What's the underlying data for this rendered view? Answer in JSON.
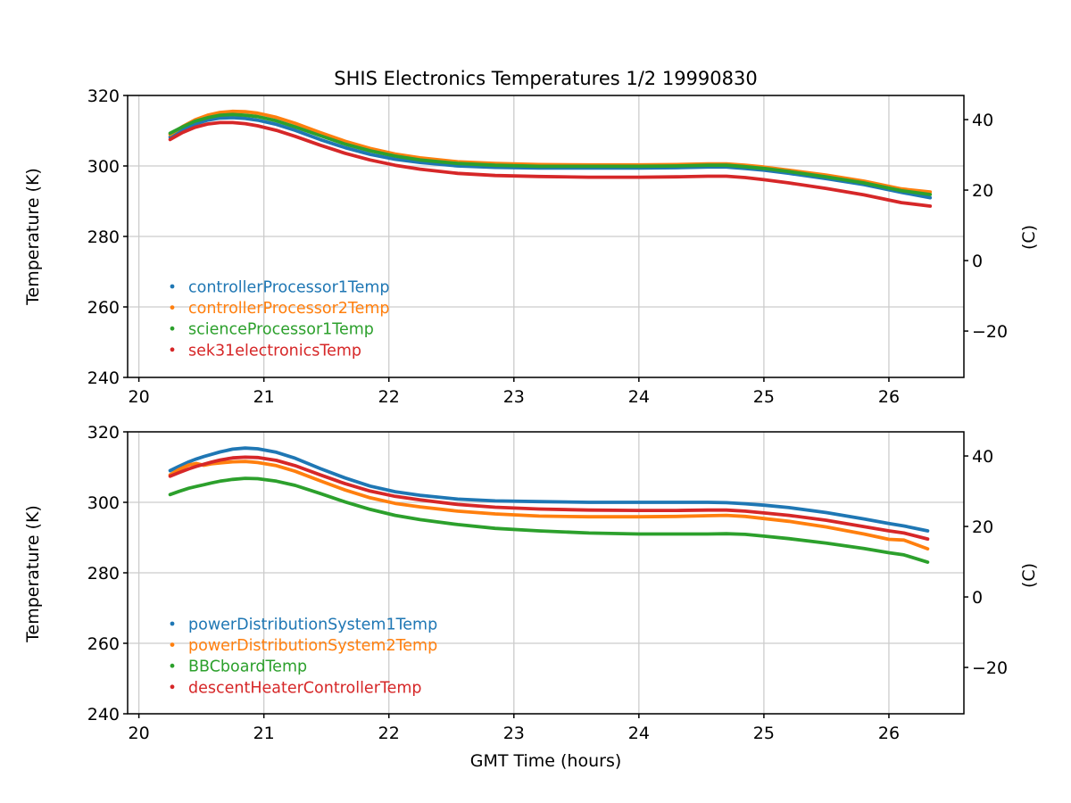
{
  "figure": {
    "title": "SHIS Electronics Temperatures 1/2 19990830",
    "background": "#ffffff",
    "text_color": "#000000",
    "grid_color": "#cccccc",
    "spine_color": "#000000"
  },
  "chart_data": [
    {
      "type": "line",
      "position": "top",
      "xlabel": "",
      "ylabel_left": "Temperature (K)",
      "ylabel_right": "(C)",
      "xlim": [
        19.91,
        26.6
      ],
      "ylim_K": [
        240,
        320
      ],
      "xticks": [
        20,
        21,
        22,
        23,
        24,
        25,
        26
      ],
      "yticks_K": [
        240,
        260,
        280,
        300,
        320
      ],
      "yticks_C": [
        -20,
        0,
        20,
        40
      ],
      "grid": true,
      "legend_position": "lower left inside, no frame, text colored per series",
      "x": [
        20.25,
        20.35,
        20.45,
        20.55,
        20.65,
        20.75,
        20.85,
        20.95,
        21.1,
        21.25,
        21.45,
        21.65,
        21.85,
        22.05,
        22.25,
        22.55,
        22.85,
        23.2,
        23.6,
        24.0,
        24.3,
        24.55,
        24.7,
        24.85,
        25.0,
        25.2,
        25.5,
        25.8,
        26.1,
        26.33
      ],
      "series": [
        {
          "name": "controllerProcessor1Temp",
          "color": "#1f77b4",
          "y": [
            308.2,
            310.3,
            311.9,
            313.0,
            313.6,
            313.7,
            313.5,
            313.0,
            311.8,
            310.1,
            307.5,
            305.2,
            303.3,
            301.9,
            301.0,
            300.0,
            299.6,
            299.4,
            299.4,
            299.4,
            299.5,
            299.7,
            299.7,
            299.3,
            298.8,
            297.9,
            296.4,
            294.7,
            292.5,
            291.0
          ]
        },
        {
          "name": "controllerProcessor2Temp",
          "color": "#ff7f0e",
          "y": [
            308.9,
            311.2,
            313.1,
            314.4,
            315.2,
            315.5,
            315.4,
            315.0,
            313.8,
            312.1,
            309.5,
            307.0,
            305.0,
            303.4,
            302.3,
            301.2,
            300.7,
            300.4,
            300.3,
            300.3,
            300.4,
            300.6,
            300.6,
            300.2,
            299.7,
            298.8,
            297.4,
            295.7,
            293.5,
            292.6
          ]
        },
        {
          "name": "scienceProcessor1Temp",
          "color": "#2ca02c",
          "y": [
            309.3,
            311.1,
            312.7,
            313.7,
            314.4,
            314.6,
            314.4,
            314.0,
            312.8,
            311.1,
            308.6,
            306.2,
            304.3,
            302.8,
            301.7,
            300.7,
            300.2,
            299.9,
            299.9,
            299.9,
            300.0,
            300.2,
            300.2,
            299.8,
            299.3,
            298.4,
            296.9,
            295.2,
            293.0,
            291.9
          ]
        },
        {
          "name": "sek31electronicsTemp",
          "color": "#d62728",
          "y": [
            307.5,
            309.5,
            311.0,
            311.9,
            312.3,
            312.3,
            312.0,
            311.4,
            310.1,
            308.4,
            305.9,
            303.6,
            301.7,
            300.2,
            299.1,
            297.9,
            297.3,
            297.0,
            296.8,
            296.8,
            296.9,
            297.1,
            297.1,
            296.7,
            296.1,
            295.2,
            293.6,
            291.8,
            289.6,
            288.6
          ]
        }
      ]
    },
    {
      "type": "line",
      "position": "bottom",
      "xlabel": "GMT Time (hours)",
      "ylabel_left": "Temperature (K)",
      "ylabel_right": "(C)",
      "xlim": [
        19.91,
        26.6
      ],
      "ylim_K": [
        240,
        320
      ],
      "xticks": [
        20,
        21,
        22,
        23,
        24,
        25,
        26
      ],
      "yticks_K": [
        240,
        260,
        280,
        300,
        320
      ],
      "yticks_C": [
        -20,
        0,
        20,
        40
      ],
      "grid": true,
      "legend_position": "lower left inside, no frame, text colored per series",
      "x": [
        20.25,
        20.32,
        20.4,
        20.46,
        20.52,
        20.58,
        20.65,
        20.75,
        20.85,
        20.95,
        21.1,
        21.25,
        21.45,
        21.65,
        21.85,
        22.05,
        22.25,
        22.55,
        22.85,
        23.2,
        23.6,
        24.0,
        24.3,
        24.55,
        24.7,
        24.85,
        25.0,
        25.2,
        25.5,
        25.8,
        26.0,
        26.12,
        26.31
      ],
      "series": [
        {
          "name": "powerDistributionSystem1Temp",
          "color": "#1f77b4",
          "y": [
            309.0,
            310.2,
            311.5,
            312.3,
            313.0,
            313.6,
            314.3,
            315.1,
            315.4,
            315.2,
            314.2,
            312.5,
            309.6,
            306.9,
            304.6,
            303.0,
            302.0,
            300.9,
            300.4,
            300.2,
            300.0,
            300.0,
            300.0,
            300.0,
            299.9,
            299.6,
            299.2,
            298.5,
            297.1,
            295.3,
            294.0,
            293.3,
            291.9
          ]
        },
        {
          "name": "powerDistributionSystem2Temp",
          "color": "#ff7f0e",
          "y": [
            307.8,
            309.3,
            310.6,
            311.0,
            310.5,
            310.9,
            311.2,
            311.5,
            311.6,
            311.3,
            310.4,
            308.8,
            306.1,
            303.5,
            301.3,
            299.7,
            298.7,
            297.5,
            296.7,
            296.1,
            295.9,
            295.9,
            296.0,
            296.2,
            296.3,
            296.0,
            295.4,
            294.6,
            293.0,
            291.0,
            289.5,
            289.3,
            286.8
          ]
        },
        {
          "name": "BBCboardTemp",
          "color": "#2ca02c",
          "y": [
            302.2,
            303.1,
            304.0,
            304.5,
            305.0,
            305.5,
            306.0,
            306.5,
            306.8,
            306.7,
            306.0,
            304.8,
            302.5,
            300.1,
            298.0,
            296.3,
            295.1,
            293.7,
            292.6,
            291.9,
            291.3,
            291.0,
            291.0,
            291.0,
            291.1,
            290.9,
            290.4,
            289.7,
            288.4,
            286.9,
            285.7,
            285.1,
            283.0
          ]
        },
        {
          "name": "descentHeaterControllerTemp",
          "color": "#d62728",
          "y": [
            307.4,
            308.4,
            309.5,
            310.2,
            310.8,
            311.4,
            312.0,
            312.6,
            312.8,
            312.7,
            311.9,
            310.4,
            307.8,
            305.3,
            303.2,
            301.7,
            300.7,
            299.4,
            298.6,
            298.1,
            297.8,
            297.7,
            297.7,
            297.8,
            297.8,
            297.5,
            297.0,
            296.3,
            294.9,
            293.1,
            291.9,
            291.3,
            289.6
          ]
        }
      ]
    }
  ]
}
